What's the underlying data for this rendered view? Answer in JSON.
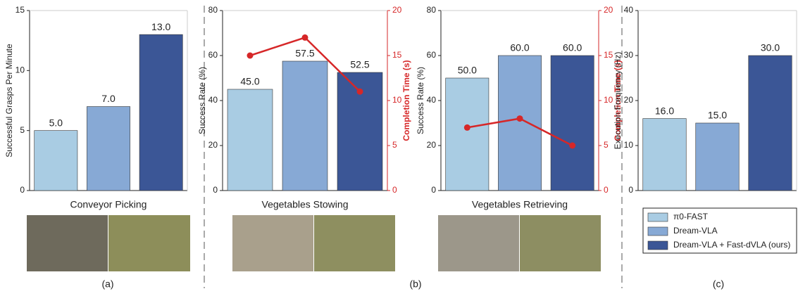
{
  "chart_data": [
    {
      "type": "bar",
      "xlabel": "Conveyor Picking",
      "ylabel": "Successful Grasps Per Minute",
      "ylim": [
        0,
        15
      ],
      "yticks": [
        0,
        5,
        10,
        15
      ],
      "series": [
        {
          "type": "bar",
          "values": [
            5,
            7,
            13
          ],
          "value_labels": [
            "5.0",
            "7.0",
            "13.0"
          ]
        }
      ]
    },
    {
      "type": "bar",
      "xlabel": "Vegetables Stowing",
      "ylabel": "Success Rate (%)",
      "y2label": "Completion Time (s)",
      "ylim": [
        0,
        80
      ],
      "yticks": [
        0,
        20,
        40,
        60,
        80
      ],
      "y2lim": [
        0,
        20
      ],
      "y2ticks": [
        0,
        5,
        10,
        15,
        20
      ],
      "series": [
        {
          "type": "bar",
          "values": [
            45,
            57.5,
            52.5
          ],
          "value_labels": [
            "45.0",
            "57.5",
            "52.5"
          ]
        },
        {
          "type": "line",
          "axis": "y2",
          "color": "#d62728",
          "values": [
            15,
            17,
            11
          ]
        }
      ]
    },
    {
      "type": "bar",
      "xlabel": "Vegetables Retrieving",
      "ylabel": "Success Rate (%)",
      "y2label": "Completion Time (s)",
      "ylim": [
        0,
        80
      ],
      "yticks": [
        0,
        20,
        40,
        60,
        80
      ],
      "y2lim": [
        0,
        20
      ],
      "y2ticks": [
        0,
        5,
        10,
        15,
        20
      ],
      "series": [
        {
          "type": "bar",
          "values": [
            50,
            60,
            60
          ],
          "value_labels": [
            "50.0",
            "60.0",
            "60.0"
          ]
        },
        {
          "type": "line",
          "axis": "y2",
          "color": "#d62728",
          "values": [
            7,
            8,
            5
          ]
        }
      ]
    },
    {
      "type": "bar",
      "ylabel": "Execution Frequency (Hz)",
      "ylim": [
        0,
        40
      ],
      "yticks": [
        0,
        10,
        20,
        30,
        40
      ],
      "series": [
        {
          "type": "bar",
          "values": [
            16,
            15,
            30
          ],
          "value_labels": [
            "16.0",
            "15.0",
            "30.0"
          ]
        }
      ]
    }
  ],
  "legend": [
    {
      "name": "π0-FAST",
      "color": "#a9cce3"
    },
    {
      "name": "Dream-VLA",
      "color": "#87a9d5"
    },
    {
      "name": "Dream-VLA + Fast-dVLA (ours)",
      "color": "#3b5696"
    }
  ],
  "panel_labels": [
    "(a)",
    "(b)",
    "(c)"
  ]
}
